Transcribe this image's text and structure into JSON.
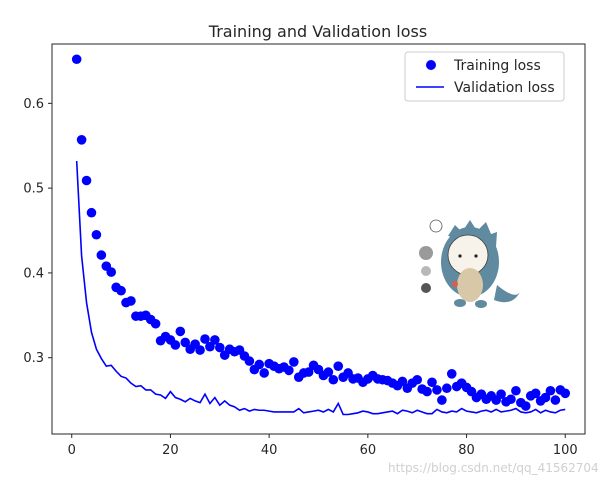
{
  "chart_data": {
    "type": "scatter",
    "title": "Training and Validation loss",
    "xlabel": "",
    "ylabel": "",
    "xlim": [
      -4,
      104
    ],
    "ylim": [
      0.21,
      0.67
    ],
    "x_ticks": [
      0,
      20,
      40,
      60,
      80,
      100
    ],
    "y_ticks": [
      0.3,
      0.4,
      0.5,
      0.6
    ],
    "grid": false,
    "legend_position": "top-right",
    "colors": {
      "training": "#0000ff",
      "validation": "#0000ff",
      "axes": "#262626"
    },
    "series": [
      {
        "name": "Training loss",
        "marker": "dot",
        "x": [
          1,
          2,
          3,
          4,
          5,
          6,
          7,
          8,
          9,
          10,
          11,
          12,
          13,
          14,
          15,
          16,
          17,
          18,
          19,
          20,
          21,
          22,
          23,
          24,
          25,
          26,
          27,
          28,
          29,
          30,
          31,
          32,
          33,
          34,
          35,
          36,
          37,
          38,
          39,
          40,
          41,
          42,
          43,
          44,
          45,
          46,
          47,
          48,
          49,
          50,
          51,
          52,
          53,
          54,
          55,
          56,
          57,
          58,
          59,
          60,
          61,
          62,
          63,
          64,
          65,
          66,
          67,
          68,
          69,
          70,
          71,
          72,
          73,
          74,
          75,
          76,
          77,
          78,
          79,
          80,
          81,
          82,
          83,
          84,
          85,
          86,
          87,
          88,
          89,
          90,
          91,
          92,
          93,
          94,
          95,
          96,
          97,
          98,
          99,
          100
        ],
        "values": [
          0.652,
          0.557,
          0.509,
          0.471,
          0.445,
          0.421,
          0.408,
          0.401,
          0.383,
          0.379,
          0.365,
          0.367,
          0.349,
          0.349,
          0.35,
          0.345,
          0.34,
          0.32,
          0.325,
          0.321,
          0.315,
          0.331,
          0.318,
          0.31,
          0.316,
          0.309,
          0.322,
          0.313,
          0.321,
          0.312,
          0.303,
          0.31,
          0.307,
          0.309,
          0.302,
          0.296,
          0.286,
          0.292,
          0.282,
          0.293,
          0.29,
          0.287,
          0.289,
          0.285,
          0.295,
          0.277,
          0.282,
          0.283,
          0.291,
          0.286,
          0.279,
          0.283,
          0.274,
          0.29,
          0.277,
          0.282,
          0.275,
          0.276,
          0.271,
          0.275,
          0.279,
          0.275,
          0.274,
          0.273,
          0.27,
          0.267,
          0.272,
          0.264,
          0.27,
          0.274,
          0.263,
          0.26,
          0.271,
          0.262,
          0.25,
          0.264,
          0.281,
          0.266,
          0.27,
          0.265,
          0.26,
          0.253,
          0.257,
          0.251,
          0.255,
          0.25,
          0.257,
          0.248,
          0.251,
          0.261,
          0.247,
          0.243,
          0.255,
          0.258,
          0.249,
          0.253,
          0.261,
          0.25,
          0.262,
          0.258
        ]
      },
      {
        "name": "Validation loss",
        "marker": "line",
        "x": [
          1,
          2,
          3,
          4,
          5,
          6,
          7,
          8,
          9,
          10,
          11,
          12,
          13,
          14,
          15,
          16,
          17,
          18,
          19,
          20,
          21,
          22,
          23,
          24,
          25,
          26,
          27,
          28,
          29,
          30,
          31,
          32,
          33,
          34,
          35,
          36,
          37,
          38,
          39,
          40,
          41,
          42,
          43,
          44,
          45,
          46,
          47,
          48,
          49,
          50,
          51,
          52,
          53,
          54,
          55,
          56,
          57,
          58,
          59,
          60,
          61,
          62,
          63,
          64,
          65,
          66,
          67,
          68,
          69,
          70,
          71,
          72,
          73,
          74,
          75,
          76,
          77,
          78,
          79,
          80,
          81,
          82,
          83,
          84,
          85,
          86,
          87,
          88,
          89,
          90,
          91,
          92,
          93,
          94,
          95,
          96,
          97,
          98,
          99,
          100
        ],
        "values": [
          0.532,
          0.42,
          0.365,
          0.33,
          0.31,
          0.299,
          0.29,
          0.291,
          0.284,
          0.278,
          0.276,
          0.27,
          0.266,
          0.267,
          0.262,
          0.262,
          0.257,
          0.256,
          0.252,
          0.26,
          0.253,
          0.251,
          0.248,
          0.252,
          0.249,
          0.247,
          0.257,
          0.246,
          0.253,
          0.244,
          0.249,
          0.244,
          0.242,
          0.238,
          0.24,
          0.237,
          0.239,
          0.238,
          0.238,
          0.237,
          0.236,
          0.236,
          0.236,
          0.236,
          0.236,
          0.24,
          0.235,
          0.236,
          0.237,
          0.238,
          0.236,
          0.239,
          0.236,
          0.246,
          0.233,
          0.233,
          0.234,
          0.235,
          0.237,
          0.236,
          0.234,
          0.234,
          0.235,
          0.236,
          0.237,
          0.234,
          0.238,
          0.237,
          0.235,
          0.238,
          0.236,
          0.234,
          0.234,
          0.239,
          0.236,
          0.235,
          0.237,
          0.236,
          0.24,
          0.237,
          0.236,
          0.235,
          0.237,
          0.238,
          0.236,
          0.239,
          0.236,
          0.237,
          0.238,
          0.24,
          0.236,
          0.235,
          0.236,
          0.239,
          0.235,
          0.238,
          0.236,
          0.235,
          0.238,
          0.239
        ]
      }
    ]
  },
  "watermark": {
    "text": "https://blog.csdn.net/qq_41562704"
  }
}
